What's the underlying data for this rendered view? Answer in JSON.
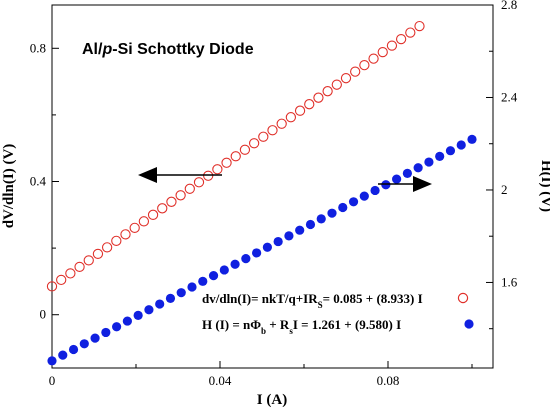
{
  "chart_data": {
    "type": "scatter",
    "title": "Al/p-Si Schottky Diode",
    "title_parts": {
      "prefix": "Al/",
      "italic": "p",
      "suffix": "-Si Schottky Diode"
    },
    "xlabel": "I (A)",
    "ylabel_left": "dV/dln(I) (V)",
    "ylabel_right": "H(I) (V)",
    "xlim": [
      0,
      0.105
    ],
    "ylim_left": [
      -0.16,
      0.93
    ],
    "ylim_right": [
      1.23,
      2.8
    ],
    "x_ticks": [
      "0",
      "0.04",
      "0.08"
    ],
    "y_left_ticks": [
      "0",
      "0.4",
      "0.8"
    ],
    "y_right_ticks": [
      "1.6",
      "2",
      "2.4",
      "2.8"
    ],
    "grid": false,
    "legend_position": "bottom-right",
    "series": [
      {
        "name": "dv/dln(I)= nkT/q+IRs= 0.085 + (8.933)I",
        "legend_parts": {
          "main": "dv/dln(I)= nkT/q+IR",
          "sub": "S",
          "rest": "= 0.085 + (8.933) I"
        },
        "axis": "left",
        "marker": "open-circle",
        "color": "#e0302a",
        "intercept": 0.085,
        "slope": 8.933,
        "x_start": 0,
        "x_end": 0.0875,
        "count": 41
      },
      {
        "name": "H(I) = nΦb + RsI = 1.261 + (9.580) I",
        "legend_parts": {
          "main": "H (I) = nΦ",
          "sub1": "b",
          "mid": " + R",
          "sub2": "s",
          "rest": "I = 1.261 + (9.580) I"
        },
        "axis": "right",
        "marker": "filled-circle",
        "color": "#1020e0",
        "intercept": 1.261,
        "slope": 9.58,
        "x_start": 0,
        "x_end": 0.1,
        "count": 40
      }
    ]
  }
}
